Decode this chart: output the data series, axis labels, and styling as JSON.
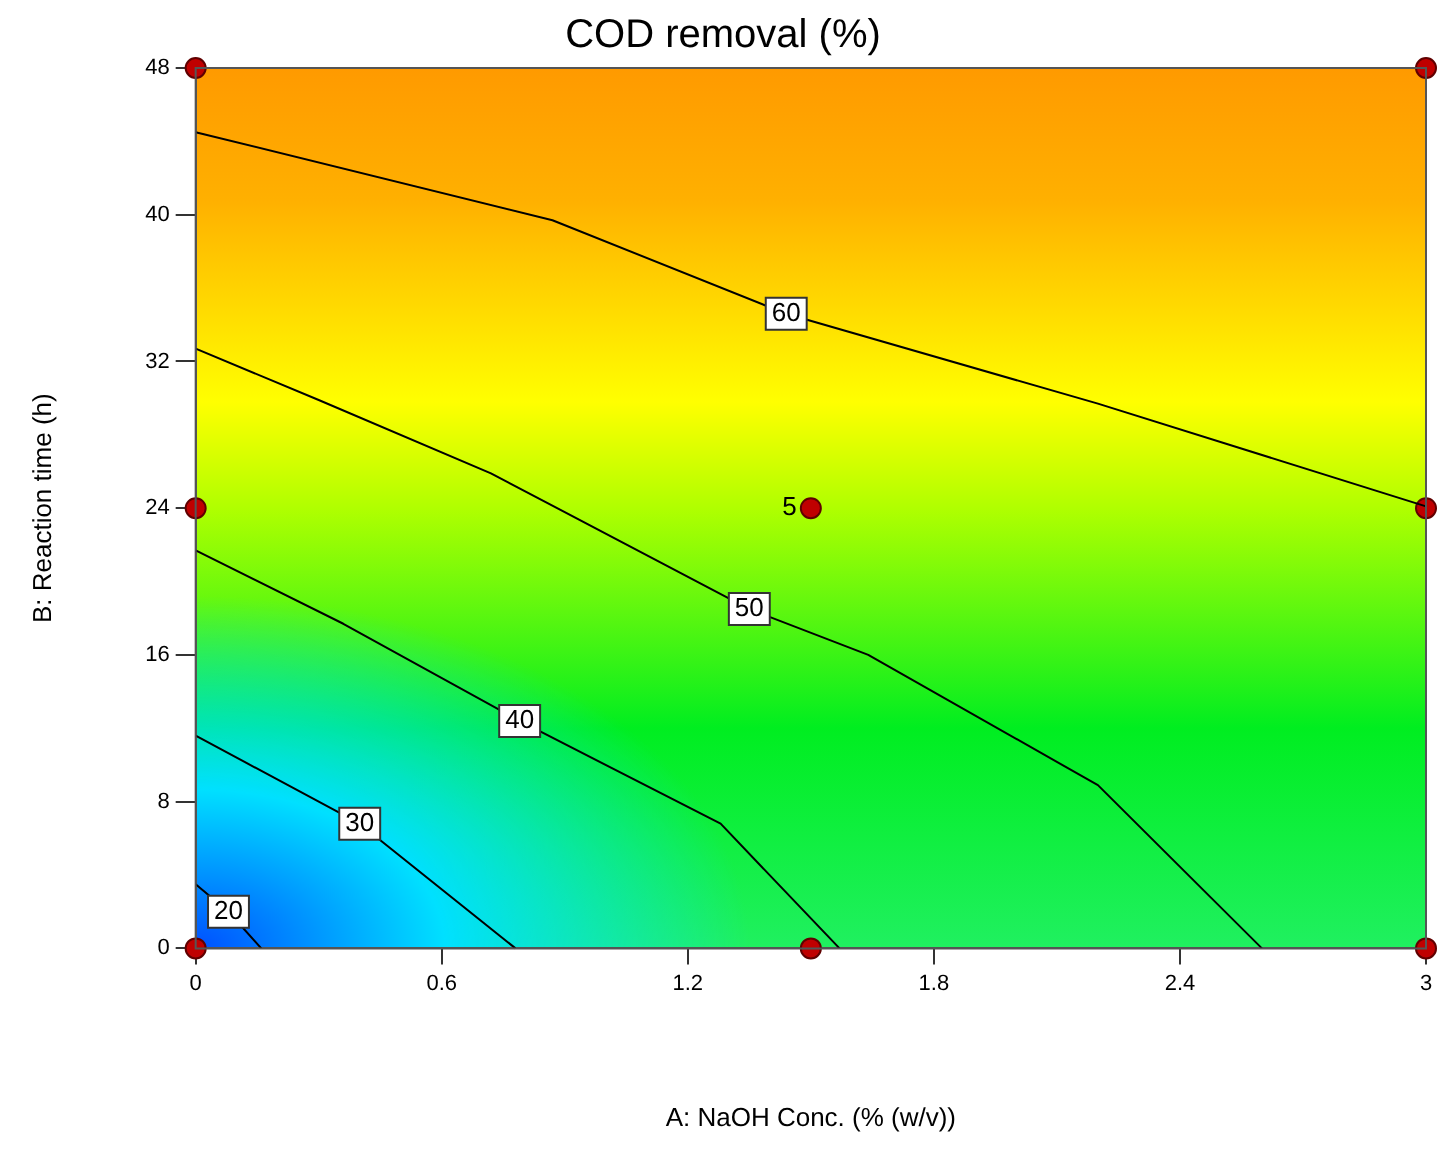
{
  "chart_data": {
    "type": "line",
    "title": "COD removal (%)",
    "xlabel": "A: NaOH Conc. (% (w/v))",
    "ylabel": "B: Reaction time (h)",
    "xlim": [
      0,
      3
    ],
    "xticks": [
      0,
      0.6,
      1.2,
      1.8,
      2.4,
      3
    ],
    "ylim": [
      0,
      48
    ],
    "yticks": [
      0,
      8,
      16,
      24,
      32,
      40,
      48
    ],
    "grid": false,
    "legend": false,
    "series": [
      {
        "name": "20",
        "color": "#000000",
        "x": [
          0,
          0.08,
          0.16
        ],
        "values": [
          3.5,
          2,
          0
        ]
      },
      {
        "name": "30",
        "color": "#000000",
        "x": [
          0,
          0.4,
          0.78
        ],
        "values": [
          11.6,
          6.8,
          0
        ]
      },
      {
        "name": "40",
        "color": "#000000",
        "x": [
          0,
          0.36,
          0.79,
          1.28,
          1.57
        ],
        "values": [
          21.7,
          17.7,
          12.4,
          6.8,
          0
        ]
      },
      {
        "name": "50",
        "color": "#000000",
        "x": [
          0,
          0.3,
          0.72,
          1.35,
          1.64,
          2.2,
          2.6
        ],
        "values": [
          32.7,
          29.9,
          25.9,
          18.5,
          16,
          8.9,
          0
        ]
      },
      {
        "name": "60",
        "color": "#000000",
        "x": [
          0,
          0.87,
          1.44,
          2.2,
          3
        ],
        "values": [
          44.5,
          39.7,
          34.6,
          29.7,
          24.1
        ]
      },
      {
        "type": "scatter",
        "color": "#c00000",
        "marker": "circle",
        "x": [
          0,
          1.5,
          3,
          0,
          1.5,
          3,
          0,
          3
        ],
        "values": [
          0,
          0,
          0,
          24,
          24,
          24,
          48,
          48
        ]
      }
    ],
    "annotations": [
      {
        "text": "5",
        "x": 1.5,
        "y": 24
      }
    ]
  }
}
